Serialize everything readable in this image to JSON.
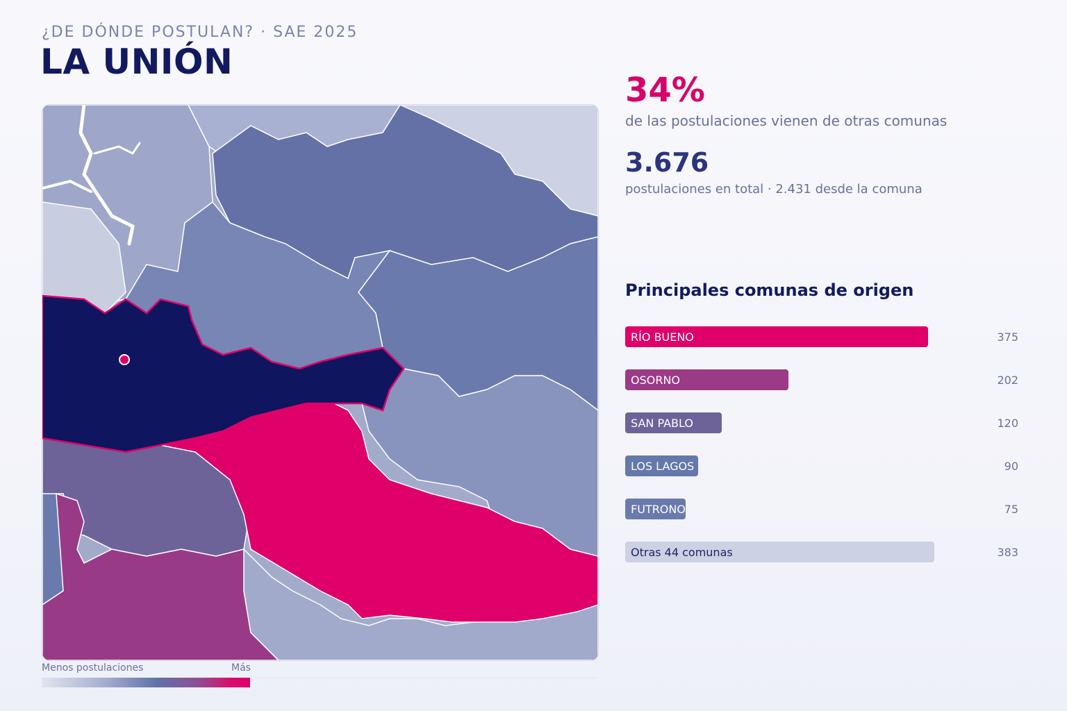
{
  "header": {
    "kicker": "¿DE DÓNDE POSTULAN? · SAE 2025",
    "title": "LA UNIÓN"
  },
  "stats": {
    "pct": "34%",
    "pct_caption": "de las postulaciones vienen de otras comunas",
    "total": "3.676",
    "total_caption": "postulaciones en total · 2.431 desde la comuna"
  },
  "legend": {
    "low_label": "Menos postulaciones",
    "high_label": "Más"
  },
  "colors": {
    "accent": "#e0006a",
    "home": "#0f155e",
    "osorno": "#9b3a87",
    "san_pablo": "#6d6399",
    "los_lagos": "#6578aa",
    "futrono": "#6a7aac",
    "others": "#ccd1e3"
  },
  "chart_data": {
    "type": "bar",
    "title": "Principales comunas de origen",
    "orientation": "horizontal",
    "categories": [
      "RÍO BUENO",
      "OSORNO",
      "SAN PABLO",
      "LOS LAGOS",
      "FUTRONO",
      "Otras 44 comunas"
    ],
    "values": [
      375,
      202,
      120,
      90,
      75,
      383
    ],
    "colors": [
      "#e0006a",
      "#9b3a87",
      "#6d6399",
      "#6578aa",
      "#6a7aac",
      "#ccd1e3"
    ]
  }
}
